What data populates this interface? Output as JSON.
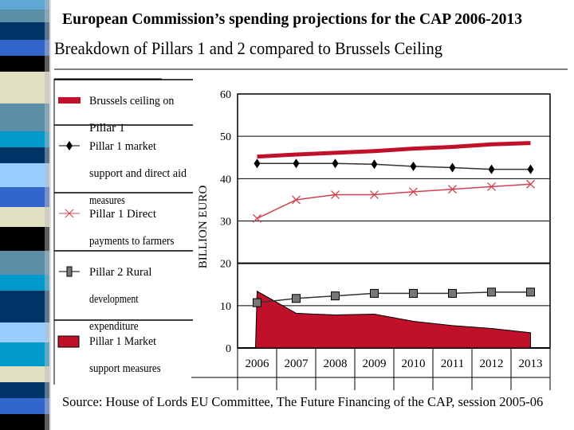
{
  "slide": {
    "title": "European Commission’s spending projections for the CAP 2006-2013",
    "subtitle": "Breakdown of Pillars 1 and 2 compared to Brussels Ceiling",
    "source": "Source: House of Lords EU Committee, The Future Financing of the CAP, session 2005-06",
    "stripe_colors": [
      "#5fa8d3",
      "#5b8fa8",
      "#003366",
      "#3366cc",
      "#000000",
      "#e0e0c0",
      "#5b8fa8",
      "#0099cc",
      "#003366",
      "#99ccff",
      "#3366cc",
      "#e0e0c0",
      "#000000",
      "#5b8fa8",
      "#0099cc",
      "#003366",
      "#99ccff",
      "#0099cc",
      "#e0e0c0",
      "#003366",
      "#3366cc",
      "#000000"
    ]
  },
  "chart_data": {
    "type": "line",
    "ylabel": "BILLION EURO",
    "ylim": [
      0,
      60
    ],
    "yticks": [
      "0",
      "10",
      "20",
      "30",
      "40",
      "50",
      "60"
    ],
    "categories": [
      "2006",
      "2007",
      "2008",
      "2009",
      "2010",
      "2011",
      "2012",
      "2013"
    ],
    "grid": true,
    "legend_position": "left",
    "series": [
      {
        "name": "Brussels ceiling on Pillar 1",
        "style": "thick-line",
        "color": "#c0102a",
        "values": [
          45.2,
          45.7,
          46.1,
          46.5,
          47.1,
          47.5,
          48.1,
          48.4
        ]
      },
      {
        "name": "Pillar 1 market support and direct aid measures",
        "style": "diamond",
        "color": "#000000",
        "values": [
          43.6,
          43.6,
          43.6,
          43.4,
          42.9,
          42.6,
          42.2,
          42.2
        ]
      },
      {
        "name": "Pillar 1 Direct payments to farmers",
        "style": "cross",
        "color": "#d0404f",
        "values": [
          30.6,
          35.0,
          36.2,
          36.2,
          36.9,
          37.5,
          38.1,
          38.7
        ]
      },
      {
        "name": "Pillar 2 Rural development expenditure",
        "style": "square",
        "color": "#555555",
        "values": [
          10.7,
          11.7,
          12.3,
          12.9,
          12.9,
          12.9,
          13.2,
          13.2
        ]
      },
      {
        "name": "Pillar 1 Market support measures",
        "style": "area",
        "color": "#c0102a",
        "values": [
          13.4,
          8.2,
          7.8,
          8.0,
          6.3,
          5.3,
          4.6,
          3.6
        ]
      }
    ]
  }
}
